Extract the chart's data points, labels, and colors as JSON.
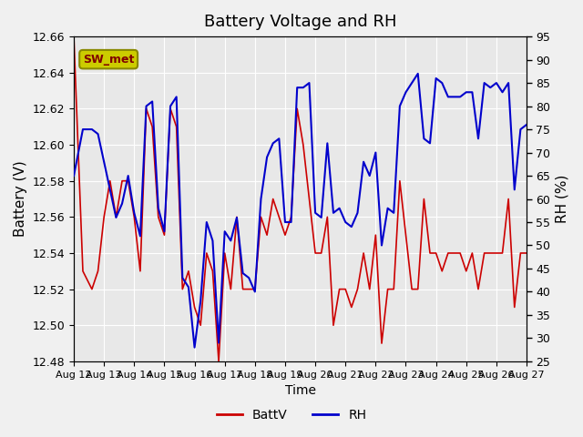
{
  "title": "Battery Voltage and RH",
  "xlabel": "Time",
  "ylabel_left": "Battery (V)",
  "ylabel_right": "RH (%)",
  "annotation": "SW_met",
  "ylim_left": [
    12.48,
    12.66
  ],
  "ylim_right": [
    25,
    95
  ],
  "yticks_left": [
    12.48,
    12.5,
    12.52,
    12.54,
    12.56,
    12.58,
    12.6,
    12.62,
    12.64,
    12.66
  ],
  "yticks_right": [
    25,
    30,
    35,
    40,
    45,
    50,
    55,
    60,
    65,
    70,
    75,
    80,
    85,
    90,
    95
  ],
  "xtick_labels": [
    "Aug 12",
    "Aug 13",
    "Aug 14",
    "Aug 15",
    "Aug 16",
    "Aug 17",
    "Aug 18",
    "Aug 19",
    "Aug 20",
    "Aug 21",
    "Aug 22",
    "Aug 23",
    "Aug 24",
    "Aug 25",
    "Aug 26",
    "Aug 27"
  ],
  "color_batt": "#cc0000",
  "color_rh": "#0000cc",
  "bg_color": "#f0f0f0",
  "plot_bg": "#e8e8e8",
  "grid_color": "#ffffff",
  "annotation_bg": "#cccc00",
  "annotation_text_color": "#800000",
  "batt_x": [
    0,
    0.3,
    0.6,
    0.8,
    1.0,
    1.2,
    1.4,
    1.6,
    1.8,
    2.0,
    2.2,
    2.4,
    2.6,
    2.8,
    3.0,
    3.2,
    3.4,
    3.6,
    3.8,
    4.0,
    4.2,
    4.4,
    4.6,
    4.8,
    5.0,
    5.2,
    5.4,
    5.6,
    5.8,
    6.0,
    6.2,
    6.4,
    6.6,
    6.8,
    7.0,
    7.2,
    7.4,
    7.6,
    7.8,
    8.0,
    8.2,
    8.4,
    8.6,
    8.8,
    9.0,
    9.2,
    9.4,
    9.6,
    9.8,
    10.0,
    10.2,
    10.4,
    10.6,
    10.8,
    11.0,
    11.2,
    11.4,
    11.6,
    11.8,
    12.0,
    12.2,
    12.4,
    12.6,
    12.8,
    13.0,
    13.2,
    13.4,
    13.6,
    13.8,
    14.0,
    14.2,
    14.4,
    14.6,
    14.8,
    15.0
  ],
  "batt_y": [
    12.66,
    12.53,
    12.52,
    12.53,
    12.56,
    12.58,
    12.56,
    12.58,
    12.58,
    12.56,
    12.53,
    12.62,
    12.61,
    12.56,
    12.55,
    12.62,
    12.61,
    12.52,
    12.53,
    12.51,
    12.5,
    12.54,
    12.53,
    12.48,
    12.54,
    12.52,
    12.56,
    12.52,
    12.52,
    12.52,
    12.56,
    12.55,
    12.57,
    12.56,
    12.55,
    12.56,
    12.62,
    12.6,
    12.57,
    12.54,
    12.54,
    12.56,
    12.5,
    12.52,
    12.52,
    12.51,
    12.52,
    12.54,
    12.52,
    12.55,
    12.49,
    12.52,
    12.52,
    12.58,
    12.55,
    12.52,
    12.52,
    12.57,
    12.54,
    12.54,
    12.53,
    12.54,
    12.54,
    12.54,
    12.53,
    12.54,
    12.52,
    12.54,
    12.54,
    12.54,
    12.54,
    12.57,
    12.51,
    12.54,
    12.54
  ],
  "rh_x": [
    0,
    0.3,
    0.6,
    0.8,
    1.0,
    1.2,
    1.4,
    1.6,
    1.8,
    2.0,
    2.2,
    2.4,
    2.6,
    2.8,
    3.0,
    3.2,
    3.4,
    3.6,
    3.8,
    4.0,
    4.2,
    4.4,
    4.6,
    4.8,
    5.0,
    5.2,
    5.4,
    5.6,
    5.8,
    6.0,
    6.2,
    6.4,
    6.6,
    6.8,
    7.0,
    7.2,
    7.4,
    7.6,
    7.8,
    8.0,
    8.2,
    8.4,
    8.6,
    8.8,
    9.0,
    9.2,
    9.4,
    9.6,
    9.8,
    10.0,
    10.2,
    10.4,
    10.6,
    10.8,
    11.0,
    11.2,
    11.4,
    11.6,
    11.8,
    12.0,
    12.2,
    12.4,
    12.6,
    12.8,
    13.0,
    13.2,
    13.4,
    13.6,
    13.8,
    14.0,
    14.2,
    14.4,
    14.6,
    14.8,
    15.0
  ],
  "rh_y": [
    65,
    75,
    75,
    74,
    68,
    62,
    56,
    59,
    65,
    57,
    52,
    80,
    81,
    58,
    53,
    80,
    82,
    43,
    41,
    28,
    38,
    55,
    51,
    29,
    53,
    51,
    56,
    44,
    43,
    40,
    60,
    69,
    72,
    73,
    55,
    55,
    84,
    84,
    85,
    57,
    56,
    72,
    57,
    58,
    55,
    54,
    57,
    68,
    65,
    70,
    50,
    58,
    57,
    80,
    83,
    85,
    87,
    73,
    72,
    86,
    85,
    82,
    82,
    82,
    83,
    83,
    73,
    85,
    84,
    85,
    83,
    85,
    62,
    75,
    76
  ]
}
